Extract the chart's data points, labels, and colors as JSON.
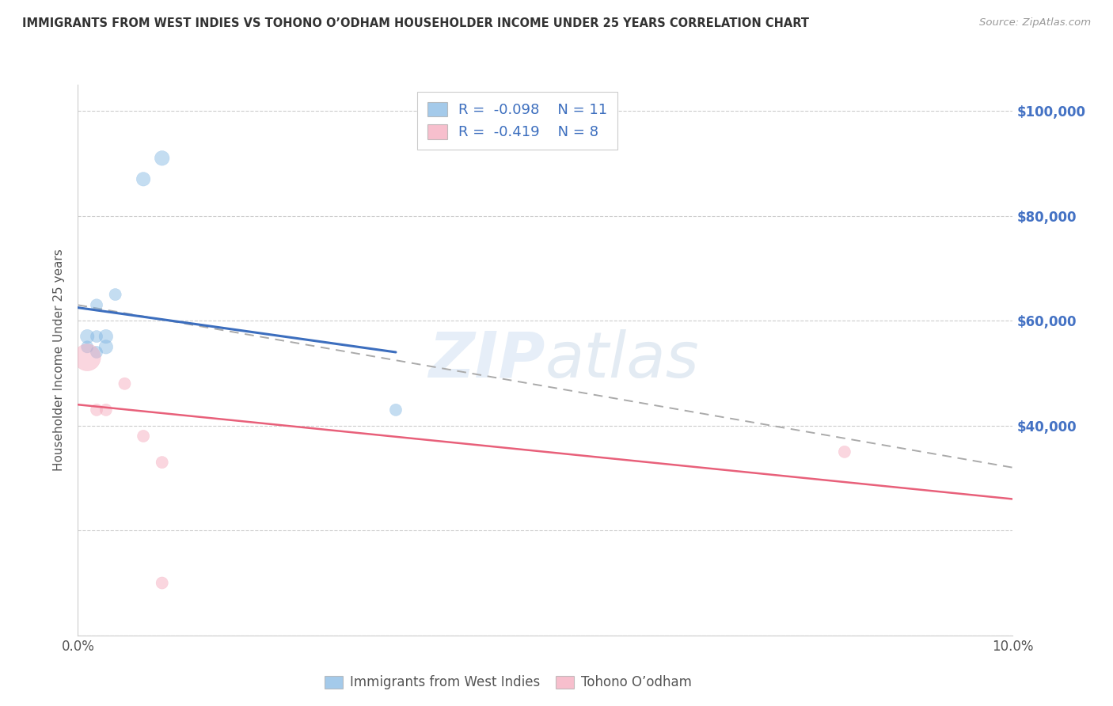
{
  "title": "IMMIGRANTS FROM WEST INDIES VS TOHONO O’ODHAM HOUSEHOLDER INCOME UNDER 25 YEARS CORRELATION CHART",
  "source": "Source: ZipAtlas.com",
  "ylabel": "Householder Income Under 25 years",
  "watermark_zip": "ZIP",
  "watermark_atlas": "atlas",
  "legend_blue_r": "-0.098",
  "legend_blue_n": "11",
  "legend_pink_r": "-0.419",
  "legend_pink_n": "8",
  "xmin": 0.0,
  "xmax": 0.1,
  "ymin": 0,
  "ymax": 105000,
  "blue_scatter_x": [
    0.001,
    0.001,
    0.002,
    0.002,
    0.002,
    0.003,
    0.003,
    0.004,
    0.007,
    0.009,
    0.034
  ],
  "blue_scatter_y": [
    55000,
    57000,
    54000,
    57000,
    63000,
    55000,
    57000,
    65000,
    87000,
    91000,
    43000
  ],
  "blue_scatter_s": [
    120,
    160,
    120,
    120,
    120,
    160,
    160,
    120,
    160,
    180,
    120
  ],
  "pink_scatter_x": [
    0.001,
    0.002,
    0.003,
    0.005,
    0.007,
    0.009,
    0.009,
    0.082
  ],
  "pink_scatter_y": [
    53000,
    43000,
    43000,
    48000,
    38000,
    33000,
    10000,
    35000
  ],
  "pink_scatter_s": [
    600,
    120,
    120,
    120,
    120,
    120,
    120,
    120
  ],
  "blue_line_x": [
    0.0,
    0.034
  ],
  "blue_line_y": [
    62500,
    54000
  ],
  "pink_line_x": [
    0.0,
    0.1
  ],
  "pink_line_y": [
    44000,
    26000
  ],
  "dashed_line_x": [
    0.0,
    0.1
  ],
  "dashed_line_y": [
    63000,
    32000
  ],
  "blue_color": "#7EB4E2",
  "blue_line_color": "#3C6EBE",
  "pink_color": "#F4A5B8",
  "pink_line_color": "#E8607A",
  "dashed_line_color": "#AAAAAA",
  "right_axis_color": "#4472C4",
  "background_color": "#FFFFFF",
  "grid_color": "#CCCCCC",
  "title_color": "#333333",
  "source_color": "#999999",
  "label_color": "#555555"
}
